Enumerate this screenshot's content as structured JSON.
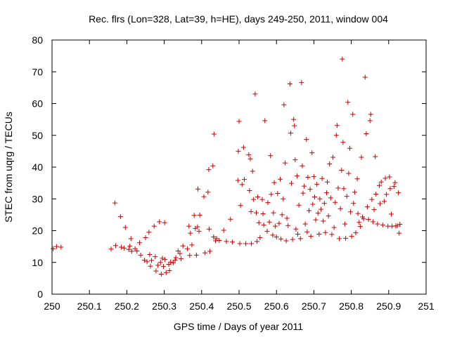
{
  "chart_data": {
    "type": "scatter",
    "title": "Rec. flrs (Lon=328, Lat=39, h=HE), days 249-250, 2011, window 004",
    "xlabel": "GPS time / Days of year 2011",
    "ylabel": "STEC from uqrg / TECUs",
    "xlim": [
      250,
      251
    ],
    "ylim": [
      0,
      80
    ],
    "x_ticks": [
      "250",
      "250.1",
      "250.2",
      "250.3",
      "250.4",
      "250.5",
      "250.6",
      "250.7",
      "250.8",
      "250.9",
      "251"
    ],
    "y_ticks": [
      "0",
      "10",
      "20",
      "30",
      "40",
      "50",
      "60",
      "70",
      "80"
    ],
    "grid": false,
    "marker": "+",
    "color": "#cc0000",
    "points": [
      [
        250.003,
        14.3
      ],
      [
        250.012,
        15
      ],
      [
        250.024,
        14.8
      ],
      [
        250.158,
        14.2
      ],
      [
        250.168,
        28.7
      ],
      [
        250.17,
        15.3
      ],
      [
        250.183,
        24.4
      ],
      [
        250.185,
        14.8
      ],
      [
        250.193,
        14.5
      ],
      [
        250.196,
        21
      ],
      [
        250.205,
        14.1
      ],
      [
        250.208,
        15.1
      ],
      [
        250.211,
        17.5
      ],
      [
        250.213,
        13.5
      ],
      [
        250.222,
        14.3
      ],
      [
        250.227,
        13.6
      ],
      [
        250.234,
        16.2
      ],
      [
        250.237,
        12.3
      ],
      [
        250.247,
        10.7
      ],
      [
        250.25,
        17.8
      ],
      [
        250.254,
        10.2
      ],
      [
        250.259,
        19.5
      ],
      [
        250.261,
        12.5
      ],
      [
        250.263,
        8.8
      ],
      [
        250.266,
        10.6
      ],
      [
        250.273,
        21.4
      ],
      [
        250.276,
        11.8
      ],
      [
        250.278,
        7.3
      ],
      [
        250.283,
        9.1
      ],
      [
        250.287,
        22.8
      ],
      [
        250.29,
        10
      ],
      [
        250.292,
        6.3
      ],
      [
        250.295,
        11.3
      ],
      [
        250.298,
        8.7
      ],
      [
        250.301,
        22.5
      ],
      [
        250.302,
        10.9
      ],
      [
        250.305,
        6.8
      ],
      [
        250.312,
        9.4
      ],
      [
        250.314,
        7.4
      ],
      [
        250.317,
        10.1
      ],
      [
        250.324,
        9.9
      ],
      [
        250.329,
        10.7
      ],
      [
        250.331,
        11.5
      ],
      [
        250.337,
        13.6
      ],
      [
        250.342,
        12.8
      ],
      [
        250.345,
        11.2
      ],
      [
        250.35,
        15.2
      ],
      [
        250.362,
        14.3
      ],
      [
        250.366,
        21.4
      ],
      [
        250.368,
        12.2
      ],
      [
        250.37,
        19.2
      ],
      [
        250.374,
        15.5
      ],
      [
        250.38,
        24.8
      ],
      [
        250.383,
        20.7
      ],
      [
        250.386,
        12.3
      ],
      [
        250.389,
        21.2
      ],
      [
        250.39,
        33.1
      ],
      [
        250.393,
        19.8
      ],
      [
        250.395,
        24.9
      ],
      [
        250.406,
        30.7
      ],
      [
        250.409,
        13
      ],
      [
        250.417,
        32.1
      ],
      [
        250.419,
        39.2
      ],
      [
        250.42,
        20.5
      ],
      [
        250.422,
        13.5
      ],
      [
        250.43,
        40.4
      ],
      [
        250.432,
        18
      ],
      [
        250.433,
        50.4
      ],
      [
        250.437,
        16.8
      ],
      [
        250.44,
        17.5
      ],
      [
        250.447,
        16.9
      ],
      [
        250.459,
        20.1
      ],
      [
        250.466,
        16.6
      ],
      [
        250.477,
        23.6
      ],
      [
        250.482,
        16.4
      ],
      [
        250.497,
        35.8
      ],
      [
        250.498,
        45
      ],
      [
        250.5,
        54.4
      ],
      [
        250.502,
        15.9
      ],
      [
        250.504,
        27.9
      ],
      [
        250.508,
        34.5
      ],
      [
        250.512,
        46.2
      ],
      [
        250.514,
        36.1
      ],
      [
        250.518,
        15.9
      ],
      [
        250.526,
        43.9
      ],
      [
        250.528,
        32.6
      ],
      [
        250.53,
        42.6
      ],
      [
        250.532,
        26
      ],
      [
        250.533,
        15.9
      ],
      [
        250.536,
        38.7
      ],
      [
        250.539,
        29.8
      ],
      [
        250.543,
        63
      ],
      [
        250.546,
        25.6
      ],
      [
        250.548,
        16.6
      ],
      [
        250.55,
        30.6
      ],
      [
        250.553,
        22.5
      ],
      [
        250.556,
        17.8
      ],
      [
        250.562,
        29.8
      ],
      [
        250.564,
        25.3
      ],
      [
        250.566,
        21.8
      ],
      [
        250.569,
        54.6
      ],
      [
        250.575,
        19.8
      ],
      [
        250.577,
        28.8
      ],
      [
        250.581,
        22.7
      ],
      [
        250.584,
        43.6
      ],
      [
        250.586,
        31.4
      ],
      [
        250.59,
        18.6
      ],
      [
        250.592,
        25.6
      ],
      [
        250.594,
        35.1
      ],
      [
        250.597,
        21.4
      ],
      [
        250.6,
        18
      ],
      [
        250.603,
        31.7
      ],
      [
        250.607,
        22.3
      ],
      [
        250.61,
        36.2
      ],
      [
        250.612,
        17.4
      ],
      [
        250.615,
        25
      ],
      [
        250.618,
        30
      ],
      [
        250.62,
        59.6
      ],
      [
        250.623,
        41.3
      ],
      [
        250.626,
        16.8
      ],
      [
        250.628,
        23.9
      ],
      [
        250.631,
        21.6
      ],
      [
        250.636,
        66.2
      ],
      [
        250.638,
        50.7
      ],
      [
        250.64,
        34.9
      ],
      [
        250.643,
        17.2
      ],
      [
        250.646,
        55
      ],
      [
        250.648,
        53
      ],
      [
        250.65,
        42.3
      ],
      [
        250.652,
        20.5
      ],
      [
        250.655,
        37.2
      ],
      [
        250.657,
        18.9
      ],
      [
        250.66,
        28
      ],
      [
        250.664,
        17.5
      ],
      [
        250.667,
        66.6
      ],
      [
        250.669,
        40.4
      ],
      [
        250.671,
        31.8
      ],
      [
        250.674,
        34
      ],
      [
        250.677,
        22.1
      ],
      [
        250.68,
        48.7
      ],
      [
        250.682,
        19.6
      ],
      [
        250.684,
        36.8
      ],
      [
        250.687,
        26.3
      ],
      [
        250.69,
        33
      ],
      [
        250.692,
        18.2
      ],
      [
        250.695,
        44.5
      ],
      [
        250.697,
        28.3
      ],
      [
        250.7,
        37
      ],
      [
        250.702,
        30.6
      ],
      [
        250.705,
        23.4
      ],
      [
        250.708,
        34.6
      ],
      [
        250.711,
        25.5
      ],
      [
        250.714,
        18.9
      ],
      [
        250.716,
        30
      ],
      [
        250.719,
        26.7
      ],
      [
        250.722,
        36.4
      ],
      [
        250.725,
        23
      ],
      [
        250.728,
        28.6
      ],
      [
        250.731,
        19.4
      ],
      [
        250.734,
        31.9
      ],
      [
        250.736,
        35.3
      ],
      [
        250.739,
        24.6
      ],
      [
        250.742,
        41
      ],
      [
        250.745,
        30.3
      ],
      [
        250.748,
        18.8
      ],
      [
        250.751,
        43.1
      ],
      [
        250.754,
        21
      ],
      [
        250.757,
        28.9
      ],
      [
        250.76,
        50
      ],
      [
        250.762,
        53.1
      ],
      [
        250.765,
        33.4
      ],
      [
        250.768,
        17.5
      ],
      [
        250.771,
        26.9
      ],
      [
        250.774,
        39
      ],
      [
        250.776,
        74
      ],
      [
        250.778,
        47.8
      ],
      [
        250.78,
        33.2
      ],
      [
        250.783,
        22.1
      ],
      [
        250.785,
        17.6
      ],
      [
        250.788,
        30.8
      ],
      [
        250.791,
        60.4
      ],
      [
        250.793,
        38
      ],
      [
        250.796,
        45.9
      ],
      [
        250.798,
        25.9
      ],
      [
        250.801,
        18.2
      ],
      [
        250.804,
        56.6
      ],
      [
        250.806,
        28.6
      ],
      [
        250.809,
        32.1
      ],
      [
        250.812,
        19.3
      ],
      [
        250.816,
        36.3
      ],
      [
        250.818,
        25.4
      ],
      [
        250.821,
        22.6
      ],
      [
        250.824,
        21.3
      ],
      [
        250.827,
        43.1
      ],
      [
        250.83,
        24.3
      ],
      [
        250.833,
        23.7
      ],
      [
        250.837,
        68.3
      ],
      [
        250.84,
        50.5
      ],
      [
        250.843,
        27.5
      ],
      [
        250.846,
        23.5
      ],
      [
        250.85,
        54.6
      ],
      [
        250.852,
        56.6
      ],
      [
        250.855,
        29.8
      ],
      [
        250.858,
        22.8
      ],
      [
        250.861,
        26.6
      ],
      [
        250.864,
        43.3
      ],
      [
        250.866,
        31.5
      ],
      [
        250.87,
        22.1
      ],
      [
        250.875,
        34.2
      ],
      [
        250.877,
        28.5
      ],
      [
        250.88,
        35.3
      ],
      [
        250.884,
        21.8
      ],
      [
        250.888,
        29.2
      ],
      [
        250.891,
        36.5
      ],
      [
        250.894,
        31.4
      ],
      [
        250.898,
        21.4
      ],
      [
        250.902,
        36.9
      ],
      [
        250.904,
        33.2
      ],
      [
        250.907,
        25.2
      ],
      [
        250.909,
        21.4
      ],
      [
        250.914,
        33.9
      ],
      [
        250.917,
        35.1
      ],
      [
        250.919,
        21.5
      ],
      [
        250.923,
        21.5
      ],
      [
        250.926,
        31.9
      ],
      [
        250.928,
        19.2
      ],
      [
        250.93,
        22
      ]
    ]
  }
}
